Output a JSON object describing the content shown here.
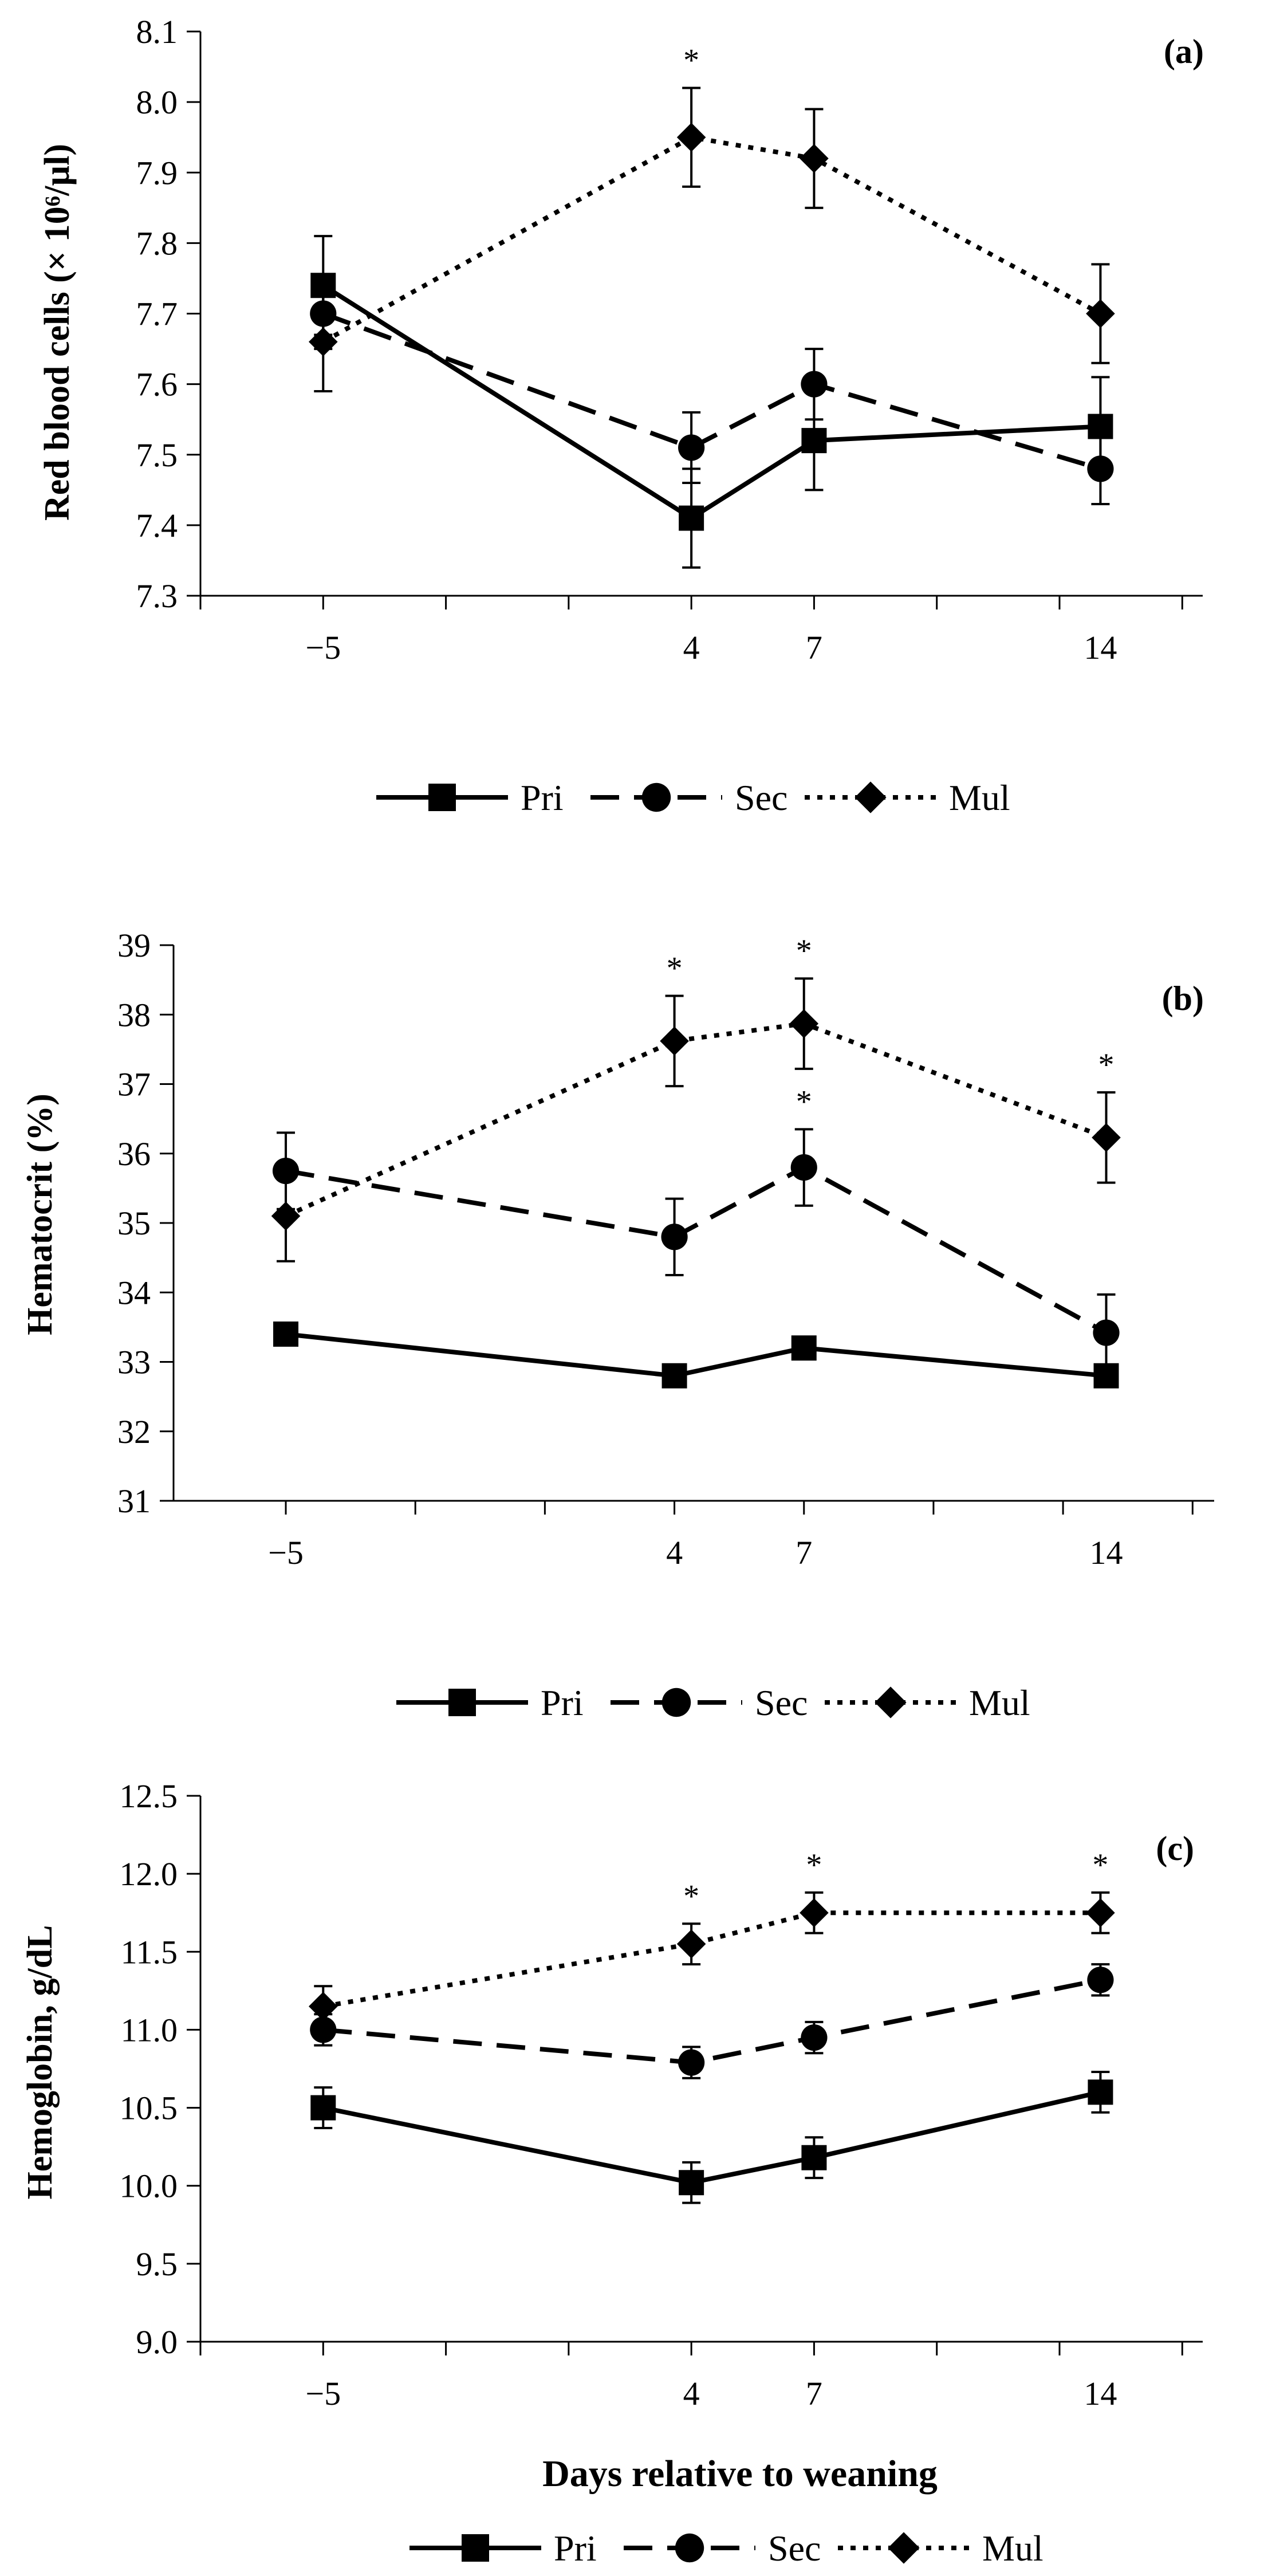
{
  "chart_data": [
    {
      "type": "line",
      "panel": "(a)",
      "ylabel": "Red blood cells  (× 10⁶/µl)",
      "xlabel": "",
      "ylim": [
        7.3,
        8.1
      ],
      "ytick_step": 0.1,
      "yticks": [
        "7.3",
        "7.4",
        "7.5",
        "7.6",
        "7.7",
        "7.8",
        "7.9",
        "8.0",
        "8.1"
      ],
      "x": [
        -5,
        4,
        7,
        14
      ],
      "xtick_labels": [
        "−5",
        "4",
        "7",
        "14"
      ],
      "series": [
        {
          "name": "Pri",
          "values": [
            7.74,
            7.41,
            7.52,
            7.54
          ],
          "errors": [
            0.07,
            0.07,
            0.07,
            0.07
          ]
        },
        {
          "name": "Sec",
          "values": [
            7.7,
            7.51,
            7.6,
            7.48
          ],
          "errors": [
            0.05,
            0.05,
            0.05,
            0.05
          ]
        },
        {
          "name": "Mul",
          "values": [
            7.66,
            7.95,
            7.92,
            7.7
          ],
          "errors": [
            0.07,
            0.07,
            0.07,
            0.07
          ]
        }
      ],
      "significance": [
        {
          "x": 4,
          "label": "*"
        }
      ]
    },
    {
      "type": "line",
      "panel": "(b)",
      "ylabel": "Hematocrit (%)",
      "xlabel": "",
      "ylim": [
        31,
        39
      ],
      "ytick_step": 1,
      "yticks": [
        "31",
        "32",
        "33",
        "34",
        "35",
        "36",
        "37",
        "38",
        "39"
      ],
      "x": [
        -5,
        4,
        7,
        14
      ],
      "xtick_labels": [
        "−5",
        "4",
        "7",
        "14"
      ],
      "series": [
        {
          "name": "Pri",
          "values": [
            33.4,
            32.8,
            33.2,
            32.8
          ],
          "errors": [
            0.0,
            0.0,
            0.0,
            0.0
          ]
        },
        {
          "name": "Sec",
          "values": [
            35.75,
            34.8,
            35.8,
            33.42
          ],
          "errors": [
            0.55,
            0.55,
            0.55,
            0.55
          ]
        },
        {
          "name": "Mul",
          "values": [
            35.1,
            37.62,
            37.87,
            36.23
          ],
          "errors": [
            0.65,
            0.65,
            0.65,
            0.65
          ]
        }
      ],
      "significance": [
        {
          "x": 4,
          "label": "*"
        },
        {
          "x": 7,
          "label": "*"
        },
        {
          "x": 7,
          "label": "*",
          "lower": true
        },
        {
          "x": 14,
          "label": "*"
        }
      ]
    },
    {
      "type": "line",
      "panel": "(c)",
      "ylabel": "Hemoglobin, g/dL",
      "xlabel": "Days relative to weaning",
      "ylim": [
        9.0,
        12.5
      ],
      "ytick_step": 0.5,
      "yticks": [
        "9.0",
        "9.5",
        "10.0",
        "10.5",
        "11.0",
        "11.5",
        "12.0",
        "12.5"
      ],
      "x": [
        -5,
        4,
        7,
        14
      ],
      "xtick_labels": [
        "−5",
        "4",
        "7",
        "14"
      ],
      "series": [
        {
          "name": "Pri",
          "values": [
            10.5,
            10.02,
            10.18,
            10.6
          ],
          "errors": [
            0.13,
            0.13,
            0.13,
            0.13
          ]
        },
        {
          "name": "Sec",
          "values": [
            11.0,
            10.79,
            10.95,
            11.32
          ],
          "errors": [
            0.1,
            0.1,
            0.1,
            0.1
          ]
        },
        {
          "name": "Mul",
          "values": [
            11.15,
            11.55,
            11.75,
            11.75
          ],
          "errors": [
            0.13,
            0.13,
            0.13,
            0.13
          ]
        }
      ],
      "significance": [
        {
          "x": 4,
          "label": "*"
        },
        {
          "x": 7,
          "label": "*"
        },
        {
          "x": 14,
          "label": "*"
        }
      ]
    }
  ],
  "legend": {
    "items": [
      {
        "label": "Pri",
        "marker": "square-icon",
        "line": "solid"
      },
      {
        "label": "Sec",
        "marker": "circle-icon",
        "line": "dashed"
      },
      {
        "label": "Mul",
        "marker": "diamond-icon",
        "line": "dotted"
      }
    ]
  }
}
